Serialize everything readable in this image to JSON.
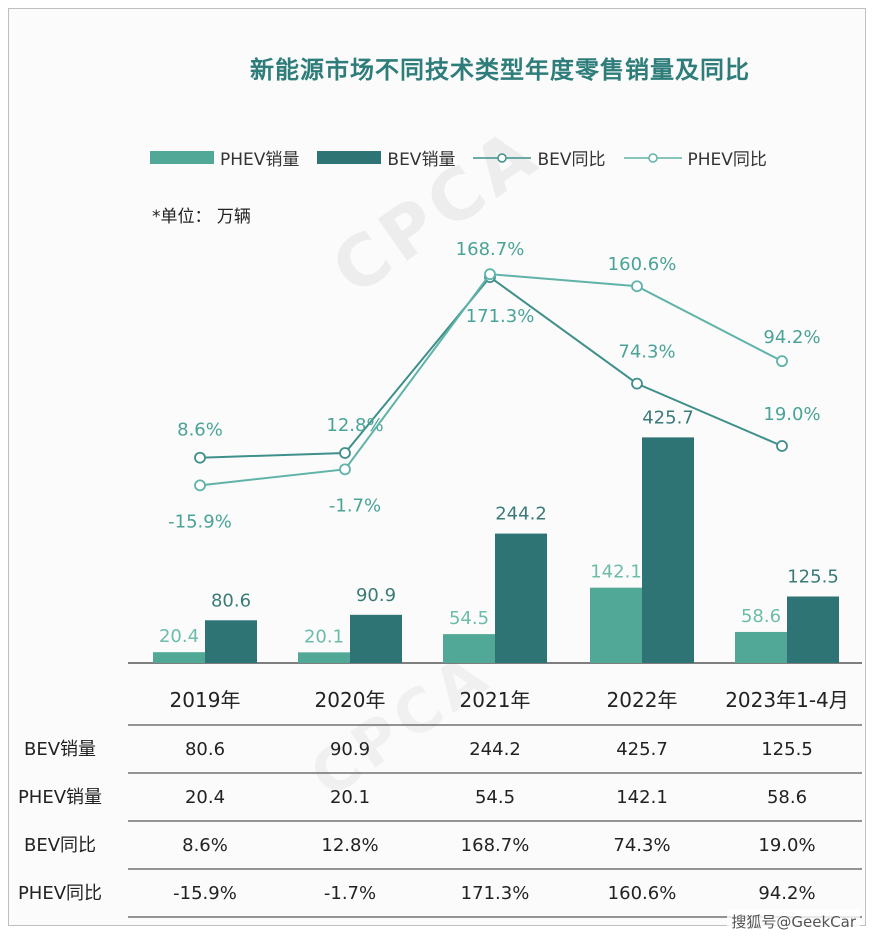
{
  "chart_data": {
    "type": "bar",
    "title": "新能源市场不同技术类型年度零售销量及同比",
    "unit_note": "*单位：  万辆",
    "categories": [
      "2019年",
      "2020年",
      "2021年",
      "2022年",
      "2023年1-4月"
    ],
    "series": [
      {
        "name": "PHEV销量",
        "kind": "bar",
        "color": "#52a896",
        "values": [
          20.4,
          20.1,
          54.5,
          142.1,
          58.6
        ]
      },
      {
        "name": "BEV销量",
        "kind": "bar",
        "color": "#2f7474",
        "values": [
          80.6,
          90.9,
          244.2,
          425.7,
          125.5
        ]
      },
      {
        "name": "BEV同比",
        "kind": "line",
        "color": "#3f8f8a",
        "values": [
          8.6,
          12.8,
          168.7,
          74.3,
          19.0
        ]
      },
      {
        "name": "PHEV同比",
        "kind": "line",
        "color": "#5fb3a8",
        "values": [
          -15.9,
          -1.7,
          171.3,
          160.6,
          94.2
        ]
      }
    ],
    "bar_labels": {
      "PHEV销量": [
        "20.4",
        "20.1",
        "54.5",
        "142.1",
        "58.6"
      ],
      "BEV销量": [
        "80.6",
        "90.9",
        "244.2",
        "425.7",
        "125.5"
      ]
    },
    "line_labels": {
      "BEV同比": [
        "8.6%",
        "12.8%",
        "168.7%",
        "74.3%",
        "19.0%"
      ],
      "PHEV同比": [
        "-15.9%",
        "-1.7%",
        "171.3%",
        "160.6%",
        "94.2%"
      ]
    },
    "table": {
      "rows": [
        {
          "label": "BEV销量",
          "cells": [
            "80.6",
            "90.9",
            "244.2",
            "425.7",
            "125.5"
          ]
        },
        {
          "label": "PHEV销量",
          "cells": [
            "20.4",
            "20.1",
            "54.5",
            "142.1",
            "58.6"
          ]
        },
        {
          "label": "BEV同比",
          "cells": [
            "8.6%",
            "12.8%",
            "168.7%",
            "74.3%",
            "19.0%"
          ]
        },
        {
          "label": "PHEV同比",
          "cells": [
            "-15.9%",
            "-1.7%",
            "171.3%",
            "160.6%",
            "94.2%"
          ]
        }
      ]
    },
    "legend_position": "top",
    "grid": false
  },
  "legend": {
    "phev_bar": "PHEV销量",
    "bev_bar": "BEV销量",
    "bev_line": "BEV同比",
    "phev_line": "PHEV同比"
  },
  "watermark": "CPCA 乘联会",
  "footer": "搜狐号@GeekCar",
  "colors": {
    "phev": "#52a896",
    "bev": "#2f7474",
    "bev_line": "#3f8f8a",
    "phev_line": "#5fb3a8",
    "title": "#2e7d7a"
  }
}
